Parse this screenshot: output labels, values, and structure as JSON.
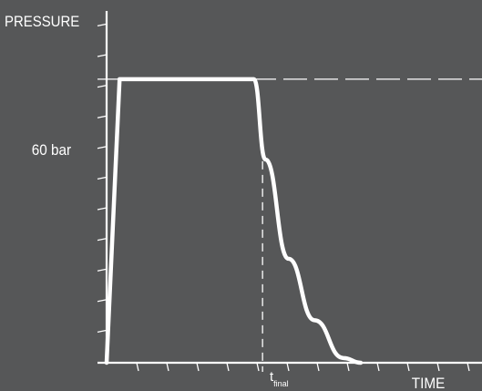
{
  "chart_data": {
    "type": "line",
    "ylabel": "PRESSURE",
    "xlabel": "TIME",
    "level_label": "60 bar",
    "marker": {
      "main": "t",
      "subscript": "final"
    },
    "colors": {
      "background": "#565758",
      "foreground": "#ffffff"
    },
    "xlim": [
      0,
      13
    ],
    "ylim": [
      0,
      7
    ],
    "series": [
      {
        "points": [
          [
            0,
            0
          ],
          [
            0.45,
            6
          ],
          [
            5.1,
            6
          ],
          [
            5.5,
            4.3
          ],
          [
            6.3,
            2.2
          ],
          [
            7.2,
            0.9
          ],
          [
            8.2,
            0.1
          ],
          [
            8.8,
            0
          ]
        ]
      }
    ],
    "level_value": 6,
    "marker_x": 5.4,
    "grid": false
  }
}
